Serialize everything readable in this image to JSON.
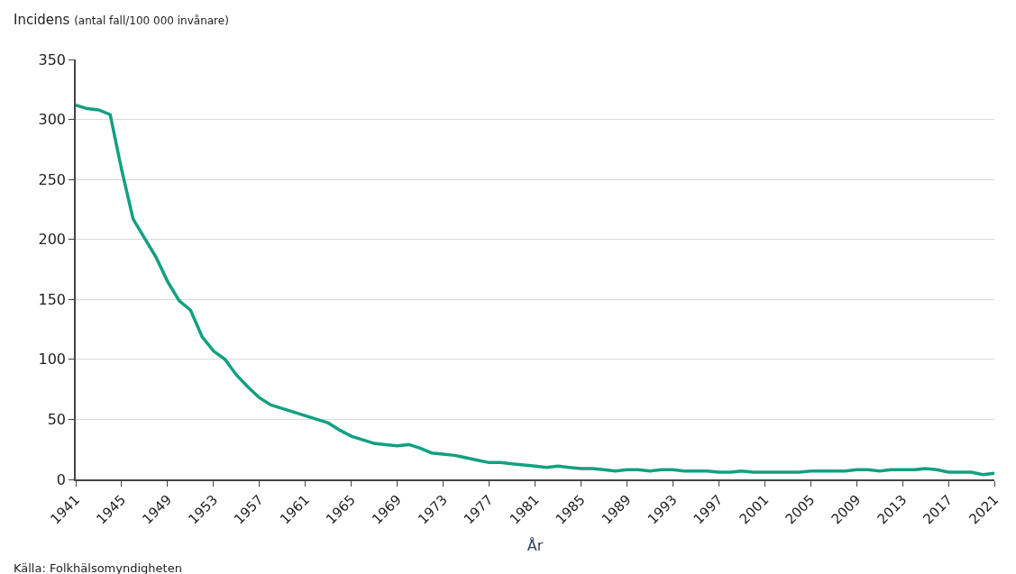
{
  "chart_data": {
    "type": "line",
    "title": "Incidens",
    "subtitle": "(antal fall/100 000 invånare)",
    "xlabel": "År",
    "annotations": [
      "Källa: Folkhälsomyndigheten"
    ],
    "x": [
      1941,
      1942,
      1943,
      1944,
      1945,
      1946,
      1947,
      1948,
      1949,
      1950,
      1951,
      1952,
      1953,
      1954,
      1955,
      1956,
      1957,
      1958,
      1959,
      1960,
      1961,
      1962,
      1963,
      1964,
      1965,
      1966,
      1967,
      1968,
      1969,
      1970,
      1971,
      1972,
      1973,
      1974,
      1975,
      1976,
      1977,
      1978,
      1979,
      1980,
      1981,
      1982,
      1983,
      1984,
      1985,
      1986,
      1987,
      1988,
      1989,
      1990,
      1991,
      1992,
      1993,
      1994,
      1995,
      1996,
      1997,
      1998,
      1999,
      2000,
      2001,
      2002,
      2003,
      2004,
      2005,
      2006,
      2007,
      2008,
      2009,
      2010,
      2011,
      2012,
      2013,
      2014,
      2015,
      2016,
      2017,
      2018,
      2019,
      2020,
      2021
    ],
    "series": [
      {
        "color": "#12a081",
        "values": [
          312,
          309,
          308,
          304,
          258,
          217,
          201,
          185,
          165,
          149,
          141,
          119,
          107,
          100,
          87,
          77,
          68,
          62,
          59,
          56,
          53,
          50,
          47,
          41,
          36,
          33,
          30,
          29,
          28,
          29,
          26,
          22,
          21,
          20,
          18,
          16,
          14,
          14,
          13,
          12,
          11,
          10,
          11,
          10,
          9,
          9,
          8,
          7,
          8,
          8,
          7,
          8,
          8,
          7,
          7,
          7,
          6,
          6,
          7,
          6,
          6,
          6,
          6,
          6,
          7,
          7,
          7,
          7,
          8,
          8,
          7,
          8,
          8,
          8,
          9,
          8,
          6,
          6,
          6,
          4,
          5
        ]
      }
    ],
    "xlim": [
      1941,
      2021
    ],
    "xticks": [
      1941,
      1945,
      1949,
      1953,
      1957,
      1961,
      1965,
      1969,
      1973,
      1977,
      1981,
      1985,
      1989,
      1993,
      1997,
      2001,
      2005,
      2009,
      2013,
      2017,
      2021
    ],
    "ylim": [
      0,
      350
    ],
    "yticks": [
      0,
      50,
      100,
      150,
      200,
      250,
      300,
      350
    ],
    "grid": "y",
    "marker": "none",
    "line_style": "solid"
  }
}
